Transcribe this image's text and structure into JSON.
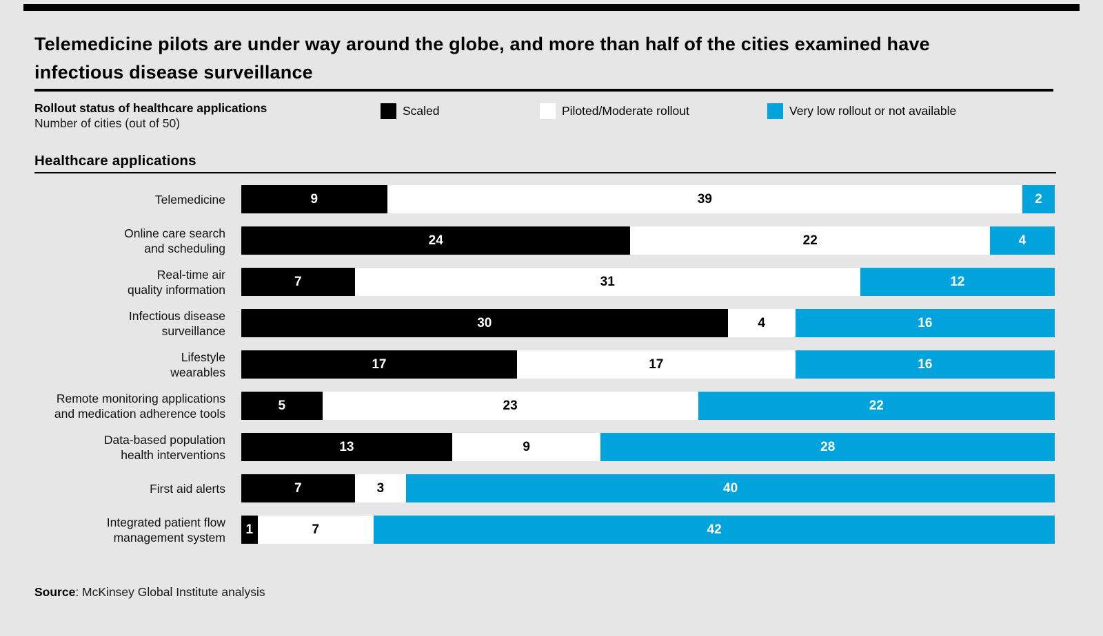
{
  "title": "Telemedicine pilots are under way around the globe, and more than half of the cities examined have\ninfectious disease surveillance",
  "subtitle": {
    "bold": "Rollout status of healthcare applications",
    "sub": "Number of cities (out of 50)"
  },
  "legend": {
    "items": [
      {
        "label": "Scaled",
        "color": "#000000"
      },
      {
        "label": "Piloted/Moderate rollout",
        "color": "#ffffff"
      },
      {
        "label": "Very low rollout or not available",
        "color": "#00a3db"
      }
    ]
  },
  "section_header": "Healthcare applications",
  "source": {
    "label": "Source",
    "text": ": McKinsey Global Institute analysis"
  },
  "colors": {
    "background": "#e6e6e6",
    "scaled": "#000000",
    "piloted": "#ffffff",
    "very_low": "#00a3db",
    "rule": "#000000"
  },
  "chart_data": {
    "type": "bar",
    "orientation": "horizontal",
    "stacked": true,
    "title": "Rollout status of healthcare applications",
    "xlabel": "Number of cities (out of 50)",
    "xlim": [
      0,
      50
    ],
    "grid": false,
    "legend_position": "top",
    "categories": [
      "Telemedicine",
      "Online care search\nand scheduling",
      "Real-time air\nquality information",
      "Infectious disease\nsurveillance",
      "Lifestyle\nwearables",
      "Remote monitoring applications\nand medication adherence tools",
      "Data-based population\nhealth interventions",
      "First aid alerts",
      "Integrated patient flow\nmanagement system"
    ],
    "series": [
      {
        "name": "Scaled",
        "color": "#000000",
        "values": [
          9,
          24,
          7,
          30,
          17,
          5,
          13,
          7,
          1
        ]
      },
      {
        "name": "Piloted/Moderate rollout",
        "color": "#ffffff",
        "values": [
          39,
          22,
          31,
          4,
          17,
          23,
          9,
          3,
          7
        ]
      },
      {
        "name": "Very low rollout or not available",
        "color": "#00a3db",
        "values": [
          2,
          4,
          12,
          16,
          16,
          22,
          28,
          40,
          42
        ]
      }
    ]
  }
}
